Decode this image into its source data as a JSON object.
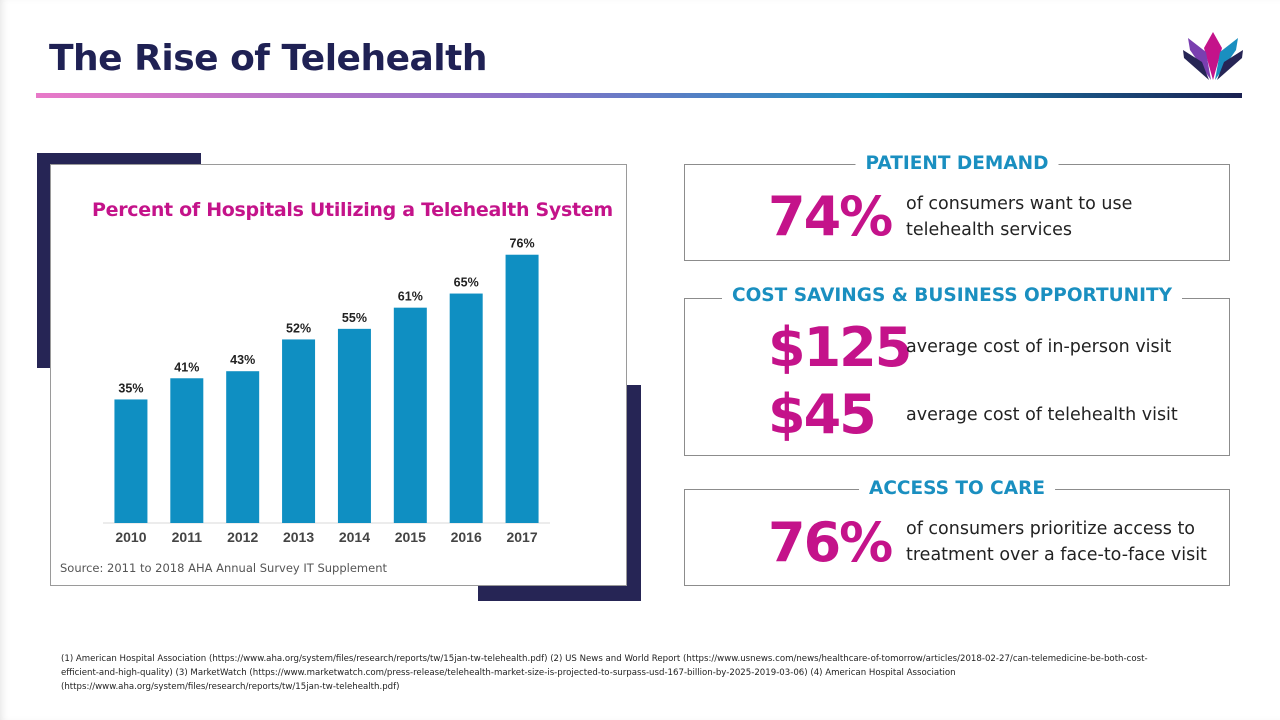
{
  "slide": {
    "title": "The Rise of Telehealth",
    "colors": {
      "title": "#1f2154",
      "accent_pink": "#c4138a",
      "accent_blue": "#1a8fc0",
      "bar": "#0f8fc2"
    }
  },
  "chart_data": {
    "type": "bar",
    "title": "Percent of Hospitals Utilizing a Telehealth System",
    "categories": [
      "2010",
      "2011",
      "2012",
      "2013",
      "2014",
      "2015",
      "2016",
      "2017"
    ],
    "values": [
      35,
      41,
      43,
      52,
      55,
      61,
      65,
      76
    ],
    "data_labels": [
      "35%",
      "41%",
      "43%",
      "52%",
      "55%",
      "61%",
      "65%",
      "76%"
    ],
    "xlabel": "",
    "ylabel": "",
    "ylim": [
      0,
      100
    ],
    "grid": false,
    "source": "Source: 2011 to 2018 AHA Annual Survey IT Supplement"
  },
  "stats": {
    "patient_demand": {
      "label": "PATIENT DEMAND",
      "value": "74%",
      "line1": "of consumers want to use",
      "line2": "telehealth services"
    },
    "cost_savings": {
      "label": "COST SAVINGS & BUSINESS OPPORTUNITY",
      "value1": "$125",
      "desc1": "average cost of in-person visit",
      "value2": "$45",
      "desc2": "average cost of telehealth visit"
    },
    "access_to_care": {
      "label": "ACCESS TO CARE",
      "value": "76%",
      "line1": "of consumers prioritize access to",
      "line2": "treatment over a face-to-face visit"
    }
  },
  "footnote": {
    "line1": "(1) American Hospital Association (https://www.aha.org/system/files/research/reports/tw/15jan-tw-telehealth.pdf) (2) US News and World Report (https://www.usnews.com/news/healthcare-of-tomorrow/articles/2018-02-27/can-telemedicine-be-both-cost-",
    "line2": "efficient-and-high-quality) (3) MarketWatch (https://www.marketwatch.com/press-release/telehealth-market-size-is-projected-to-surpass-usd-167-billion-by-2025-2019-03-06) (4) American Hospital Association",
    "line3": "(https://www.aha.org/system/files/research/reports/tw/15jan-tw-telehealth.pdf)"
  }
}
